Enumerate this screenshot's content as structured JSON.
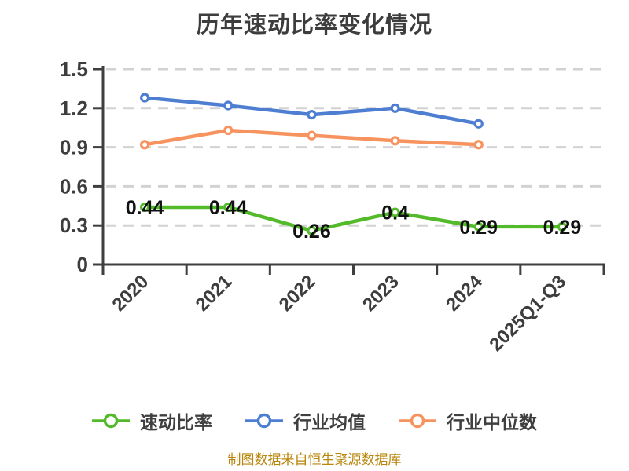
{
  "title": "历年速动比率变化情况",
  "footer": {
    "text": "制图数据来自恒生聚源数据库",
    "color": "#B8860B"
  },
  "chart_data": {
    "type": "line",
    "title": "历年速动比率变化情况",
    "categories": [
      "2020",
      "2021",
      "2022",
      "2023",
      "2024",
      "2025Q1-Q3"
    ],
    "series": [
      {
        "name": "速动比率",
        "slug": "quick-ratio",
        "color": "#53BB2A",
        "values": [
          0.44,
          0.44,
          0.26,
          0.4,
          0.29,
          0.29
        ],
        "point_labels": [
          "0.44",
          "0.44",
          "0.26",
          "0.4",
          "0.29",
          "0.29"
        ]
      },
      {
        "name": "行业均值",
        "slug": "industry-average",
        "color": "#4D7ED2",
        "values": [
          1.28,
          1.22,
          1.15,
          1.2,
          1.08
        ]
      },
      {
        "name": "行业中位数",
        "slug": "industry-median",
        "color": "#F7935F",
        "values": [
          0.92,
          1.03,
          0.99,
          0.95,
          0.92
        ]
      }
    ],
    "ylim": [
      0,
      1.5
    ],
    "yticks": [
      "0",
      "0.3",
      "0.6",
      "0.9",
      "1.2",
      "1.5"
    ],
    "grid": "horizontal-dashed",
    "legend_position": "bottom",
    "marker": "circle-white-fill",
    "colors": {
      "axis": "#3f3f3f",
      "grid": "#d2d2d2",
      "tick_text": "#3d3d3d",
      "point_label": "#111111"
    }
  }
}
